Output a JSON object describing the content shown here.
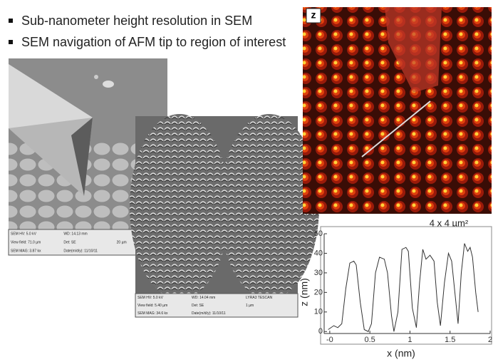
{
  "bullets": [
    "Sub-nanometer height resolution in SEM",
    "SEM navigation of AFM tip to region of interest"
  ],
  "sem_image_1": {
    "info": [
      [
        "SEM HV: 5.0 kV",
        "WD: 14.13 mm"
      ],
      [
        "View field: 71.0 µm",
        "Det: SE",
        "20 µm"
      ],
      [
        "SEM MAG: 3.87 kx",
        "Date(m/d/y): 11/10/11"
      ]
    ]
  },
  "sem_image_2": {
    "info": [
      [
        "SEM HV: 5.0 kV",
        "WD: 14.04 mm",
        "LYRA3 TESCAN"
      ],
      [
        "View field: 5.40 µm",
        "Det: SE",
        "1 µm"
      ],
      [
        "SEM MAG: 34.6 kx",
        "Date(m/d/y): 11/10/11"
      ]
    ]
  },
  "afm_image": {
    "label": "z",
    "caption": "4 x 4 µm²"
  },
  "chart_data": {
    "type": "line",
    "x_label": "x (nm)",
    "y_label": "z (nm)",
    "color": "#333333",
    "x": [
      -0.02,
      0.05,
      0.1,
      0.15,
      0.2,
      0.25,
      0.3,
      0.33,
      0.38,
      0.43,
      0.48,
      0.52,
      0.57,
      0.62,
      0.68,
      0.72,
      0.77,
      0.8,
      0.85,
      0.9,
      0.95,
      0.98,
      1.03,
      1.08,
      1.12,
      1.16,
      1.2,
      1.25,
      1.3,
      1.34,
      1.38,
      1.43,
      1.48,
      1.52,
      1.56,
      1.6,
      1.64,
      1.68,
      1.72,
      1.75,
      1.78,
      1.82,
      1.85
    ],
    "values": [
      1,
      3,
      2,
      4,
      22,
      35,
      36,
      34,
      15,
      1,
      0,
      4,
      30,
      38,
      37,
      30,
      8,
      0,
      10,
      42,
      43,
      41,
      12,
      2,
      25,
      42,
      37,
      39,
      36,
      15,
      3,
      25,
      40,
      36,
      20,
      4,
      30,
      45,
      41,
      43,
      38,
      20,
      10
    ],
    "xlim": [
      -0.07,
      2.0
    ],
    "ylim": [
      -1,
      50
    ],
    "xticks": [
      {
        "value": 0,
        "label": "-0"
      },
      0.5,
      1,
      1.5,
      2
    ],
    "yticks": [
      0,
      10,
      20,
      30,
      40,
      50
    ]
  }
}
